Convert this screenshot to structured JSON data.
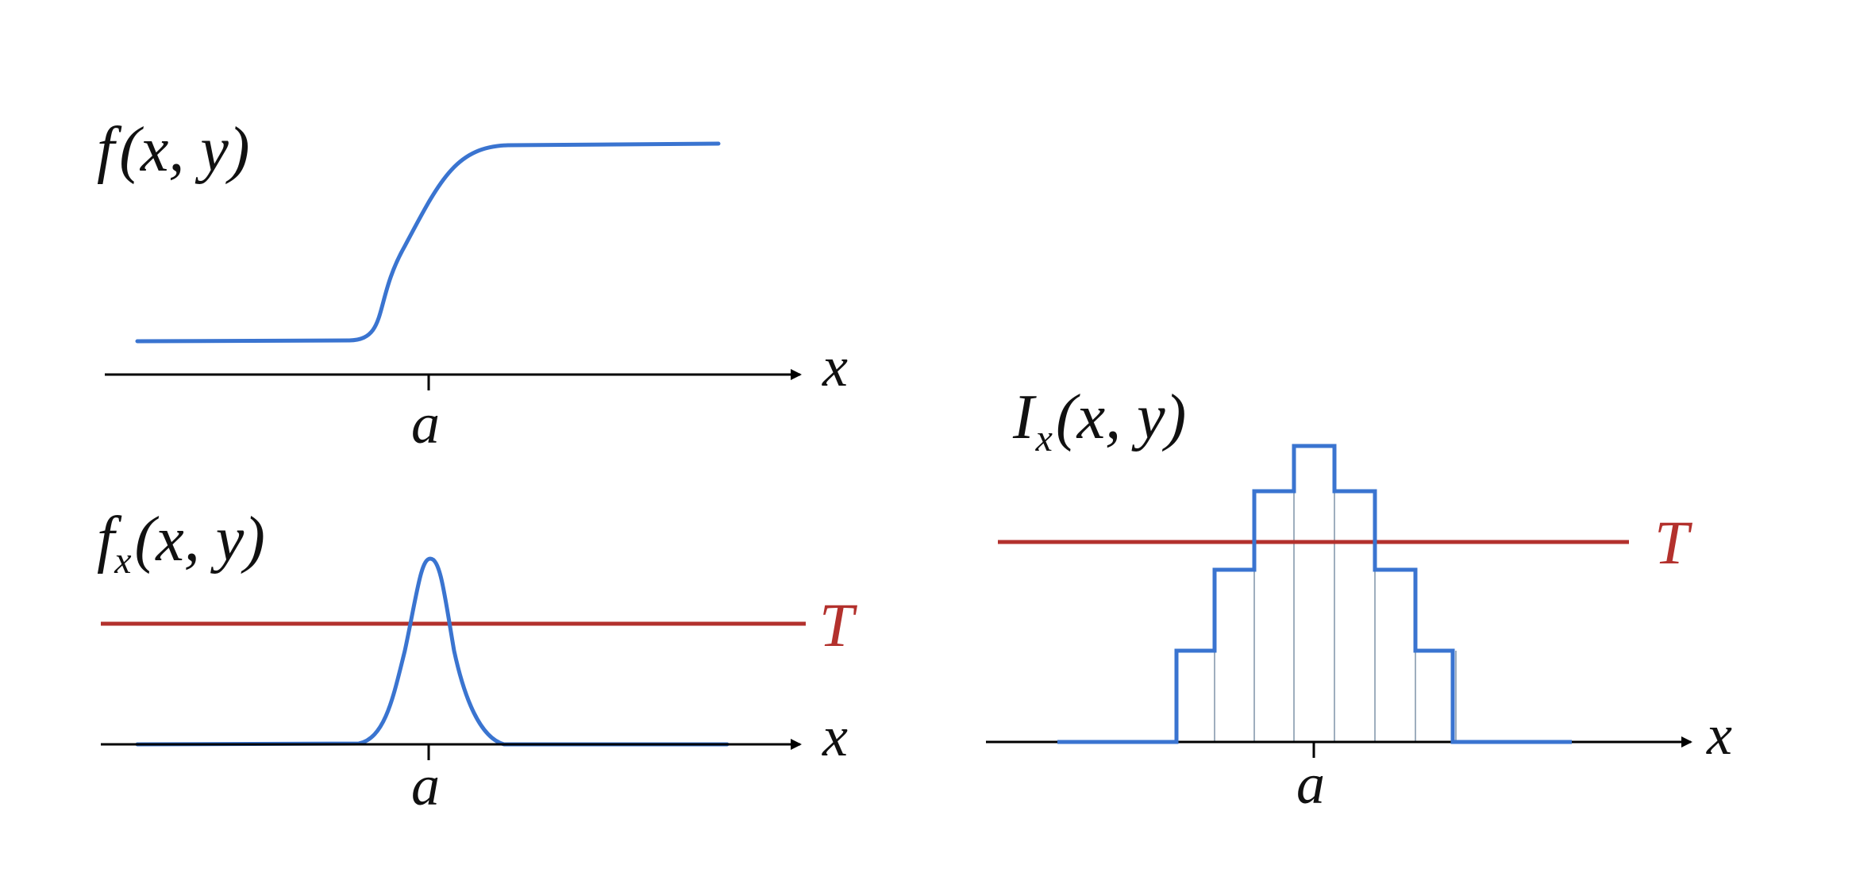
{
  "colors": {
    "signal": "#3a74d0",
    "threshold": "#b3312d",
    "axis": "#000000",
    "grid": "#7f93a8"
  },
  "panels": {
    "top_left": {
      "label_fn": "f",
      "label_sub": "",
      "label_args": "(x, y)",
      "axis_label": "x",
      "tick_label": "a",
      "curve": "smooth step rising at a"
    },
    "bottom_left": {
      "label_fn": "f",
      "label_sub": "x",
      "label_args": "(x, y)",
      "axis_label": "x",
      "tick_label": "a",
      "threshold_label": "T"
    },
    "right": {
      "label_fn": "I",
      "label_sub": "x",
      "label_args": "(x, y)",
      "axis_label": "x",
      "tick_label": "a",
      "threshold_label": "T",
      "step_levels": [
        0,
        1,
        2,
        3,
        4,
        3,
        2,
        1,
        0
      ]
    }
  }
}
